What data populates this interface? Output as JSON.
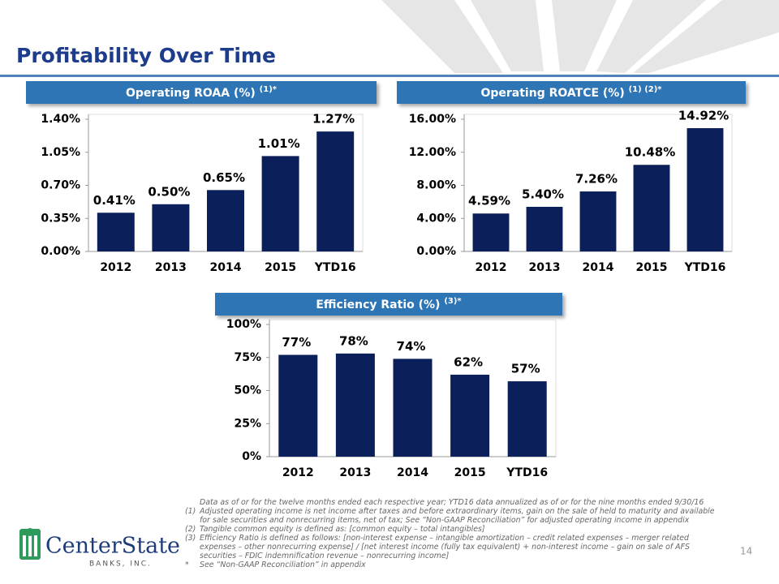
{
  "title": "Profitability Over Time",
  "chart_data": [
    {
      "type": "bar",
      "title": "Operating ROAA (%)",
      "title_note": "(1)*",
      "categories": [
        "2012",
        "2013",
        "2014",
        "2015",
        "YTD16"
      ],
      "values": [
        0.41,
        0.5,
        0.65,
        1.01,
        1.27
      ],
      "value_labels": [
        "0.41%",
        "0.50%",
        "0.65%",
        "1.01%",
        "1.27%"
      ],
      "color": "#0b1f5a",
      "ylim": [
        0,
        1.4
      ],
      "yticks": [
        {
          "value": 0,
          "label": "0.00%"
        },
        {
          "value": 0.35,
          "label": "0.35%"
        },
        {
          "value": 0.7,
          "label": "0.70%"
        },
        {
          "value": 1.05,
          "label": "1.05%"
        },
        {
          "value": 1.4,
          "label": "1.40%"
        }
      ]
    },
    {
      "type": "bar",
      "title": "Operating ROATCE (%)",
      "title_note": "(1) (2)*",
      "categories": [
        "2012",
        "2013",
        "2014",
        "2015",
        "YTD16"
      ],
      "values": [
        4.59,
        5.4,
        7.26,
        10.48,
        14.92
      ],
      "value_labels": [
        "4.59%",
        "5.40%",
        "7.26%",
        "10.48%",
        "14.92%"
      ],
      "color": "#0b1f5a",
      "ylim": [
        0,
        16
      ],
      "yticks": [
        {
          "value": 0,
          "label": "0.00%"
        },
        {
          "value": 4,
          "label": "4.00%"
        },
        {
          "value": 8,
          "label": "8.00%"
        },
        {
          "value": 12,
          "label": "12.00%"
        },
        {
          "value": 16,
          "label": "16.00%"
        }
      ]
    },
    {
      "type": "bar",
      "title": "Efficiency Ratio (%)",
      "title_note": "(3)*",
      "categories": [
        "2012",
        "2013",
        "2014",
        "2015",
        "YTD16"
      ],
      "values": [
        77,
        78,
        74,
        62,
        57
      ],
      "value_labels": [
        "77%",
        "78%",
        "74%",
        "62%",
        "57%"
      ],
      "color": "#0b1f5a",
      "ylim": [
        0,
        100
      ],
      "yticks": [
        {
          "value": 0,
          "label": "0%"
        },
        {
          "value": 25,
          "label": "25%"
        },
        {
          "value": 50,
          "label": "50%"
        },
        {
          "value": 75,
          "label": "75%"
        },
        {
          "value": 100,
          "label": "100%"
        }
      ]
    }
  ],
  "footnotes": [
    {
      "text": "Data as of or for the twelve months ended each respective year; YTD16 data annualized as of or for the nine months ended 9/30/16"
    },
    {
      "marker": "(1)",
      "text": "Adjusted operating income is net income after taxes and before extraordinary items, gain on the sale of held to maturity and available for sale securities and nonrecurring items, net of tax; See “Non-GAAP Reconciliation”  for adjusted operating income in appendix"
    },
    {
      "marker": "(2)",
      "text": "Tangible common equity is defined as: [common equity – total intangibles]"
    },
    {
      "marker": "(3)",
      "text": "Efficiency Ratio is defined as follows:  [non-interest expense – intangible amortization – credit related expenses – merger related expenses – other nonrecurring expense] / [net interest income (fully tax equivalent) + non-interest income – gain on sale of AFS securities – FDIC indemnification revenue – nonrecurring income]"
    },
    {
      "marker": "*",
      "text": "See “Non-GAAP Reconciliation” in appendix"
    }
  ],
  "logo": {
    "name": "CenterState",
    "sub": "BANKS, INC."
  },
  "page_number": "14"
}
